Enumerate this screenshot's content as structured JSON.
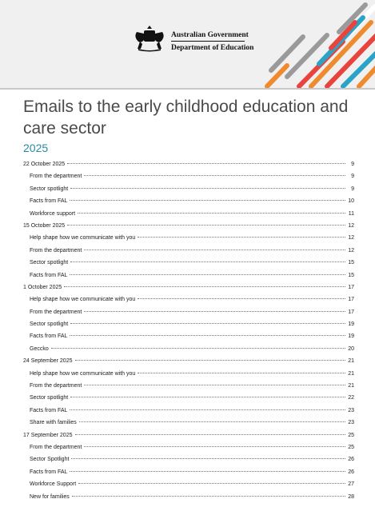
{
  "header": {
    "org_line1": "Australian Government",
    "org_line2": "Department of Education",
    "stripe_colors": [
      "#f08a2e",
      "#e8433d",
      "#2aa3c6",
      "#9a9a9a",
      "#ffffff"
    ]
  },
  "title": "Emails to the early childhood education and care sector",
  "year": "2025",
  "toc": [
    {
      "label": "22 October 2025",
      "page": "9",
      "level": 1
    },
    {
      "label": "From the department",
      "page": "9",
      "level": 2
    },
    {
      "label": "Sector spotlight",
      "page": "9",
      "level": 2
    },
    {
      "label": "Facts from FAL",
      "page": "10",
      "level": 2
    },
    {
      "label": "Workforce support",
      "page": "11",
      "level": 2
    },
    {
      "label": "15 October 2025",
      "page": "12",
      "level": 1
    },
    {
      "label": "Help shape how we communicate with you",
      "page": "12",
      "level": 2
    },
    {
      "label": "From the department",
      "page": "12",
      "level": 2
    },
    {
      "label": "Sector spotlight",
      "page": "15",
      "level": 2
    },
    {
      "label": "Facts from FAL",
      "page": "15",
      "level": 2
    },
    {
      "label": "1 October 2025",
      "page": "17",
      "level": 1
    },
    {
      "label": "Help shape how we communicate with you",
      "page": "17",
      "level": 2
    },
    {
      "label": "From the department",
      "page": "17",
      "level": 2
    },
    {
      "label": "Sector spotlight",
      "page": "19",
      "level": 2
    },
    {
      "label": "Facts from FAL",
      "page": "19",
      "level": 2
    },
    {
      "label": "Geccko",
      "page": "20",
      "level": 2
    },
    {
      "label": "24 September 2025",
      "page": "21",
      "level": 1
    },
    {
      "label": "Help shape how we communicate with you",
      "page": "21",
      "level": 2
    },
    {
      "label": "From the department",
      "page": "21",
      "level": 2
    },
    {
      "label": "Sector spotlight",
      "page": "22",
      "level": 2
    },
    {
      "label": "Facts from FAL",
      "page": "23",
      "level": 2
    },
    {
      "label": "Share with families",
      "page": "23",
      "level": 2
    },
    {
      "label": "17 September 2025",
      "page": "25",
      "level": 1
    },
    {
      "label": "From the department",
      "page": "25",
      "level": 2
    },
    {
      "label": "Sector Spotlight",
      "page": "26",
      "level": 2
    },
    {
      "label": "Facts from FAL",
      "page": "26",
      "level": 2
    },
    {
      "label": "Workforce Support",
      "page": "27",
      "level": 2
    },
    {
      "label": "New for families",
      "page": "28",
      "level": 2
    }
  ]
}
